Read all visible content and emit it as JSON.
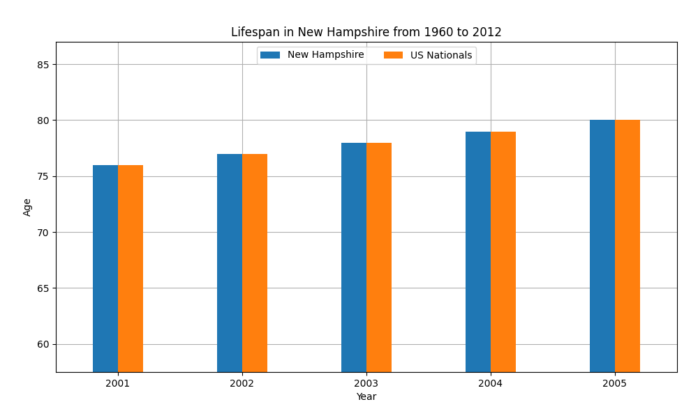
{
  "chart_data": {
    "type": "bar",
    "title": "Lifespan in New Hampshire from 1960 to 2012",
    "x_label": "Year",
    "y_label": "Age",
    "categories": [
      "2001",
      "2002",
      "2003",
      "2004",
      "2005"
    ],
    "series": [
      {
        "name": "New Hampshire",
        "values": [
          76,
          77,
          78,
          79,
          80
        ]
      },
      {
        "name": "US Nationals",
        "values": [
          76,
          77,
          78,
          79,
          80
        ]
      }
    ],
    "ylim": [
      57.5,
      87
    ],
    "yticks": [
      60,
      65,
      70,
      75,
      80,
      85
    ],
    "grid": true,
    "legend": "upper center"
  }
}
